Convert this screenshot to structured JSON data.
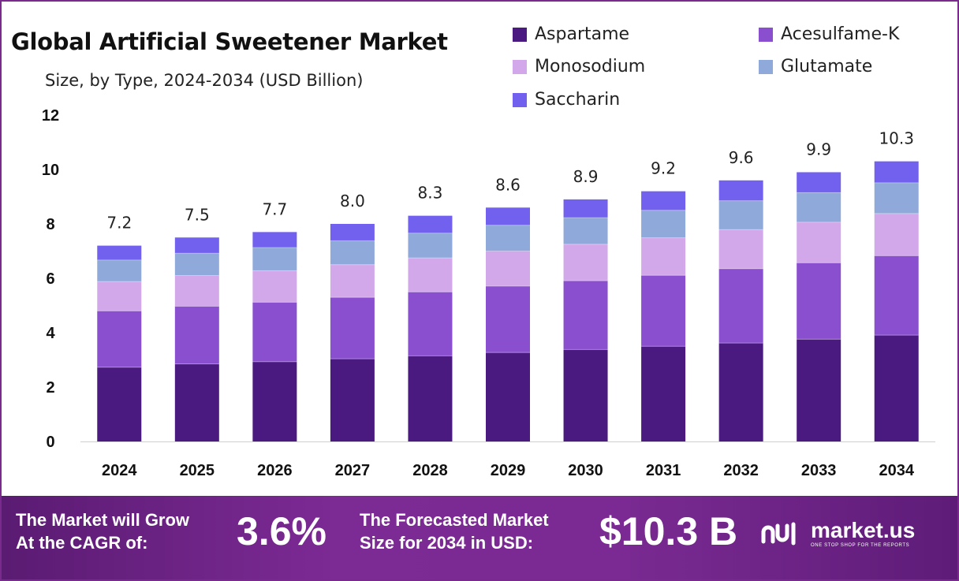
{
  "title": "Global Artificial Sweetener Market",
  "subtitle": "Size, by Type, 2024-2034 (USD Billion)",
  "banner": {
    "cagr_line1": "The Market will Grow",
    "cagr_line2": "At the CAGR of:",
    "cagr_value": "3.6%",
    "forecast_line1": "The Forecasted Market",
    "forecast_line2": "Size for 2034 in USD:",
    "forecast_value": "$10.3 B",
    "brand_name": "market.us",
    "brand_tagline": "ONE STOP SHOP FOR THE REPORTS"
  },
  "colors": {
    "Aspartame": "#4b1a80",
    "Acesulfame-K": "#8a4fcf",
    "Monosodium": "#d2a8ea",
    "Glutamate": "#8fa9db",
    "Saccharin": "#7260ef",
    "frame": "#7a2a8c",
    "banner": "#6f2488"
  },
  "chart_data": {
    "type": "bar",
    "stacked": true,
    "categories": [
      "2024",
      "2025",
      "2026",
      "2027",
      "2028",
      "2029",
      "2030",
      "2031",
      "2032",
      "2033",
      "2034"
    ],
    "series": [
      {
        "name": "Aspartame",
        "values": [
          2.73,
          2.85,
          2.93,
          3.04,
          3.15,
          3.27,
          3.38,
          3.5,
          3.62,
          3.76,
          3.91
        ]
      },
      {
        "name": "Acesulfame-K",
        "values": [
          2.07,
          2.12,
          2.19,
          2.26,
          2.35,
          2.44,
          2.53,
          2.61,
          2.73,
          2.81,
          2.92
        ]
      },
      {
        "name": "Monosodium",
        "values": [
          1.08,
          1.13,
          1.16,
          1.2,
          1.25,
          1.29,
          1.34,
          1.38,
          1.44,
          1.49,
          1.55
        ]
      },
      {
        "name": "Glutamate",
        "values": [
          0.79,
          0.82,
          0.85,
          0.88,
          0.91,
          0.95,
          0.98,
          1.01,
          1.06,
          1.09,
          1.13
        ]
      },
      {
        "name": "Saccharin",
        "values": [
          0.53,
          0.58,
          0.57,
          0.62,
          0.64,
          0.65,
          0.67,
          0.7,
          0.75,
          0.75,
          0.79
        ]
      }
    ],
    "totals": [
      "7.2",
      "7.5",
      "7.7",
      "8.0",
      "8.3",
      "8.6",
      "8.9",
      "9.2",
      "9.6",
      "9.9",
      "10.3"
    ],
    "y_ticks": [
      "0",
      "2",
      "4",
      "6",
      "8",
      "10",
      "12"
    ],
    "ylim": [
      0,
      12
    ],
    "legend_position": "top-right",
    "grid": false
  }
}
